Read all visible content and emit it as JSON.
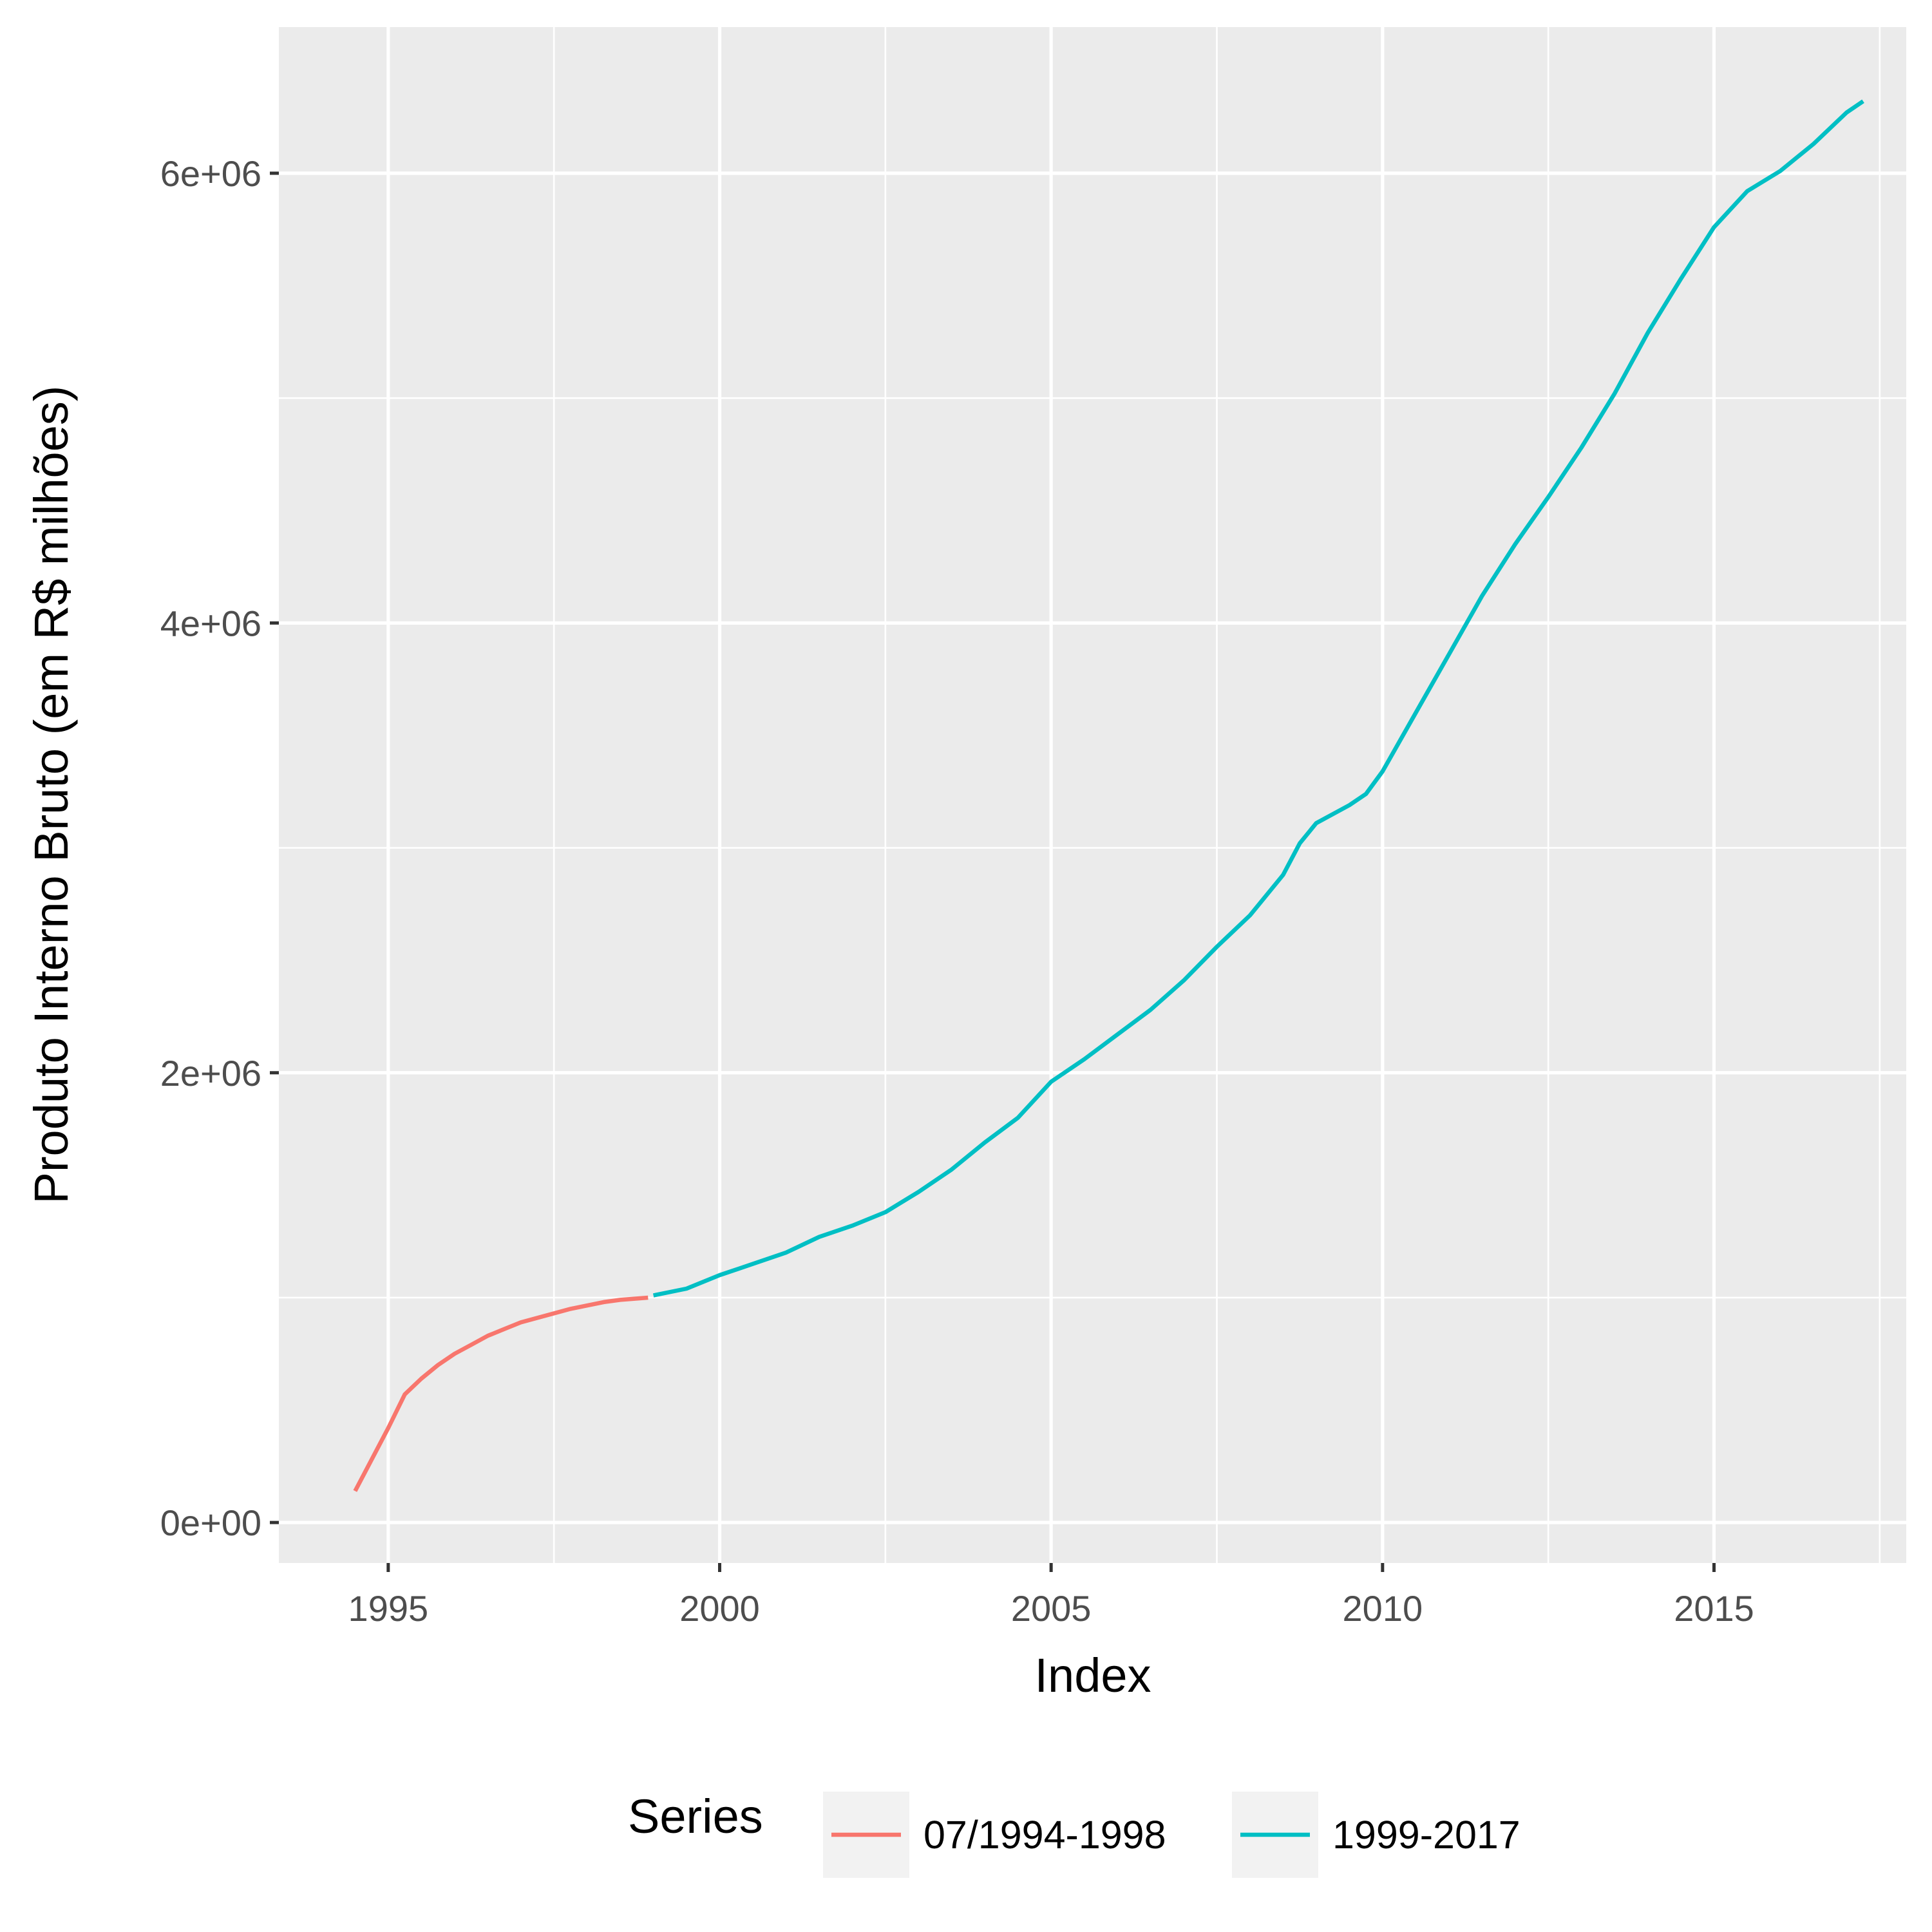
{
  "chart_data": {
    "type": "line",
    "title": "",
    "xlabel": "Index",
    "ylabel": "Produto Interno Bruto (em R$ milhões)",
    "xlim": [
      1993.35,
      2017.9
    ],
    "ylim": [
      -180000,
      6650000
    ],
    "x_ticks": [
      1995,
      2000,
      2005,
      2010,
      2015
    ],
    "x_tick_labels": [
      "1995",
      "2000",
      "2005",
      "2010",
      "2015"
    ],
    "y_ticks": [
      0,
      2000000,
      4000000,
      6000000
    ],
    "y_tick_labels": [
      "0e+00",
      "2e+06",
      "4e+06",
      "6e+06"
    ],
    "grid": true,
    "legend": {
      "title": "Series",
      "position": "bottom"
    },
    "series": [
      {
        "name": "07/1994-1998",
        "color": "#F8766D",
        "points": [
          [
            1994.5,
            140000
          ],
          [
            1994.75,
            280000
          ],
          [
            1995.0,
            420000
          ],
          [
            1995.25,
            570000
          ],
          [
            1995.5,
            640000
          ],
          [
            1995.75,
            700000
          ],
          [
            1996.0,
            750000
          ],
          [
            1996.25,
            790000
          ],
          [
            1996.5,
            830000
          ],
          [
            1996.75,
            860000
          ],
          [
            1997.0,
            890000
          ],
          [
            1997.25,
            910000
          ],
          [
            1997.5,
            930000
          ],
          [
            1997.75,
            950000
          ],
          [
            1998.0,
            965000
          ],
          [
            1998.25,
            980000
          ],
          [
            1998.5,
            990000
          ],
          [
            1998.92,
            1000000
          ]
        ]
      },
      {
        "name": "1999-2017",
        "color": "#00BFC4",
        "points": [
          [
            1999.0,
            1010000
          ],
          [
            1999.5,
            1040000
          ],
          [
            2000.0,
            1100000
          ],
          [
            2000.5,
            1150000
          ],
          [
            2001.0,
            1200000
          ],
          [
            2001.5,
            1270000
          ],
          [
            2002.0,
            1320000
          ],
          [
            2002.5,
            1380000
          ],
          [
            2003.0,
            1470000
          ],
          [
            2003.5,
            1570000
          ],
          [
            2004.0,
            1690000
          ],
          [
            2004.5,
            1800000
          ],
          [
            2005.0,
            1960000
          ],
          [
            2005.5,
            2060000
          ],
          [
            2006.0,
            2170000
          ],
          [
            2006.5,
            2280000
          ],
          [
            2007.0,
            2410000
          ],
          [
            2007.5,
            2560000
          ],
          [
            2008.0,
            2700000
          ],
          [
            2008.5,
            2880000
          ],
          [
            2008.75,
            3020000
          ],
          [
            2009.0,
            3110000
          ],
          [
            2009.5,
            3190000
          ],
          [
            2009.75,
            3240000
          ],
          [
            2010.0,
            3340000
          ],
          [
            2010.5,
            3600000
          ],
          [
            2011.0,
            3860000
          ],
          [
            2011.5,
            4120000
          ],
          [
            2012.0,
            4350000
          ],
          [
            2012.5,
            4560000
          ],
          [
            2013.0,
            4780000
          ],
          [
            2013.5,
            5020000
          ],
          [
            2014.0,
            5290000
          ],
          [
            2014.5,
            5530000
          ],
          [
            2015.0,
            5760000
          ],
          [
            2015.5,
            5920000
          ],
          [
            2016.0,
            6010000
          ],
          [
            2016.5,
            6130000
          ],
          [
            2017.0,
            6270000
          ],
          [
            2017.25,
            6320000
          ]
        ]
      }
    ]
  }
}
